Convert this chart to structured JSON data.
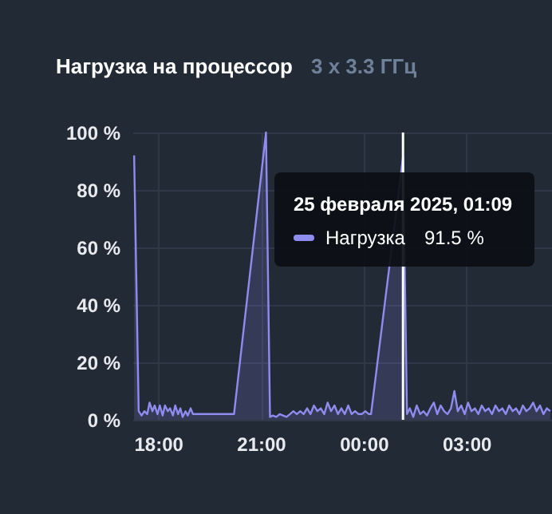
{
  "chart_data": {
    "type": "area",
    "title": "Нагрузка на процессор",
    "subtitle": "3 x 3.3 ГГц",
    "annotations": [
      "25 февраля 2025, 01:09",
      "91.5 %"
    ],
    "x": [
      "2025-02-24T17:18",
      "2025-02-24T17:26",
      "2025-02-24T17:31",
      "2025-02-24T17:36",
      "2025-02-24T17:41",
      "2025-02-24T17:45",
      "2025-02-24T17:50",
      "2025-02-24T17:54",
      "2025-02-24T17:59",
      "2025-02-24T18:03",
      "2025-02-24T18:08",
      "2025-02-24T18:12",
      "2025-02-24T18:17",
      "2025-02-24T18:21",
      "2025-02-24T18:26",
      "2025-02-24T18:30",
      "2025-02-24T18:35",
      "2025-02-24T18:39",
      "2025-02-24T18:43",
      "2025-02-24T18:48",
      "2025-02-24T18:52",
      "2025-02-24T18:57",
      "2025-02-24T19:01",
      "2025-02-24T19:06",
      "2025-02-24T19:10",
      "2025-02-24T19:15",
      "2025-02-24T19:19",
      "2025-02-24T19:24",
      "2025-02-24T19:28",
      "2025-02-24T19:33",
      "2025-02-24T19:37",
      "2025-02-24T20:13",
      "2025-02-24T21:09",
      "2025-02-24T21:16",
      "2025-02-24T21:21",
      "2025-02-24T21:27",
      "2025-02-24T21:33",
      "2025-02-24T21:39",
      "2025-02-24T21:45",
      "2025-02-24T21:51",
      "2025-02-24T21:57",
      "2025-02-24T22:03",
      "2025-02-24T22:09",
      "2025-02-24T22:15",
      "2025-02-24T22:21",
      "2025-02-24T22:27",
      "2025-02-24T22:33",
      "2025-02-24T22:39",
      "2025-02-24T22:45",
      "2025-02-24T22:51",
      "2025-02-24T22:57",
      "2025-02-24T23:03",
      "2025-02-24T23:09",
      "2025-02-24T23:15",
      "2025-02-24T23:21",
      "2025-02-24T23:27",
      "2025-02-24T23:33",
      "2025-02-24T23:39",
      "2025-02-24T23:45",
      "2025-02-24T23:51",
      "2025-02-24T23:57",
      "2025-02-25T00:03",
      "2025-02-25T00:09",
      "2025-02-25T00:13",
      "2025-02-25T01:09",
      "2025-02-25T01:16",
      "2025-02-25T01:21",
      "2025-02-25T01:27",
      "2025-02-25T01:33",
      "2025-02-25T01:39",
      "2025-02-25T01:45",
      "2025-02-25T01:51",
      "2025-02-25T01:57",
      "2025-02-25T02:03",
      "2025-02-25T02:09",
      "2025-02-25T02:15",
      "2025-02-25T02:21",
      "2025-02-25T02:27",
      "2025-02-25T02:33",
      "2025-02-25T02:39",
      "2025-02-25T02:45",
      "2025-02-25T02:51",
      "2025-02-25T02:57",
      "2025-02-25T03:03",
      "2025-02-25T03:09",
      "2025-02-25T03:15",
      "2025-02-25T03:21",
      "2025-02-25T03:27",
      "2025-02-25T03:33",
      "2025-02-25T03:39",
      "2025-02-25T03:45",
      "2025-02-25T03:51",
      "2025-02-25T03:57",
      "2025-02-25T04:03",
      "2025-02-25T04:09",
      "2025-02-25T04:15",
      "2025-02-25T04:21",
      "2025-02-25T04:27",
      "2025-02-25T04:33",
      "2025-02-25T04:39",
      "2025-02-25T04:45",
      "2025-02-25T04:51",
      "2025-02-25T04:57",
      "2025-02-25T05:03",
      "2025-02-25T05:09",
      "2025-02-25T05:15",
      "2025-02-25T05:21",
      "2025-02-25T05:27"
    ],
    "series": [
      {
        "name": "Нагрузка",
        "color": "#8f8cf0",
        "values": [
          92,
          3,
          1.5,
          3,
          2,
          6,
          3,
          5,
          2,
          5,
          1.5,
          5,
          3,
          4,
          1.5,
          5,
          2,
          4,
          1,
          3,
          1.5,
          4,
          2,
          2,
          2,
          2,
          2,
          2,
          2,
          2,
          2,
          2,
          100,
          1,
          1.5,
          1,
          2,
          1.5,
          1,
          2,
          3,
          2,
          3,
          2,
          4,
          2,
          5,
          3,
          4,
          2,
          6,
          3,
          5,
          2,
          4,
          2,
          5,
          2,
          3,
          2,
          2,
          3,
          2,
          2,
          91.5,
          2,
          4,
          1,
          5,
          2,
          3,
          1.5,
          4,
          6,
          2,
          5,
          3,
          2,
          4,
          10,
          3,
          5,
          2,
          6,
          3,
          4,
          2,
          5,
          3,
          4,
          2,
          5,
          3,
          4,
          2,
          5,
          3,
          4,
          2,
          5,
          3,
          4,
          6,
          3,
          5,
          2,
          4,
          3
        ]
      }
    ],
    "xlim": [
      "2025-02-24T17:15",
      "2025-02-25T05:30"
    ],
    "xticks": [
      {
        "value": "2025-02-24T18:00",
        "label": "18:00"
      },
      {
        "value": "2025-02-24T21:00",
        "label": "21:00"
      },
      {
        "value": "2025-02-25T00:00",
        "label": "00:00"
      },
      {
        "value": "2025-02-25T03:00",
        "label": "03:00"
      }
    ],
    "ylim": [
      0,
      100
    ],
    "yticks": [
      {
        "value": 0,
        "label": "0 %"
      },
      {
        "value": 20,
        "label": "20 %"
      },
      {
        "value": 40,
        "label": "40 %"
      },
      {
        "value": 60,
        "label": "60 %"
      },
      {
        "value": 80,
        "label": "80 %"
      },
      {
        "value": 100,
        "label": "100 %"
      }
    ],
    "ref_lines": [
      {
        "axis": "x",
        "value": "2025-02-25T01:09",
        "color": "#ffffff"
      }
    ],
    "grid": true,
    "legend": "top",
    "marker": "none",
    "line_style": "solid"
  }
}
